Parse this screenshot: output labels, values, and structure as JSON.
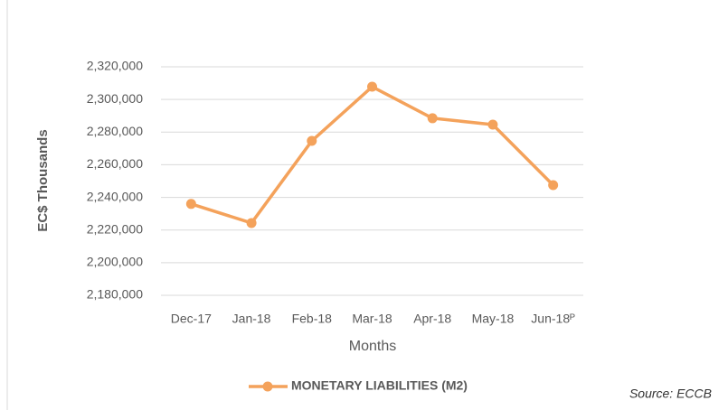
{
  "chart_data": {
    "type": "line",
    "y_label": "EC$ Thousands",
    "x_label": "Months",
    "source": "Source:  ECCB",
    "categories": [
      "Dec-17",
      "Jan-18",
      "Feb-18",
      "Mar-18",
      "Apr-18",
      "May-18",
      "Jun-18ᴾ"
    ],
    "series": [
      {
        "name": "MONETARY LIABILITIES (M2)",
        "color": "#f4a25b",
        "values": [
          2236000,
          2224300,
          2274600,
          2307800,
          2288500,
          2284600,
          2247500
        ]
      }
    ],
    "ylim": [
      2180000,
      2320000
    ],
    "yticks": [
      {
        "value": 2180000,
        "label": "2,180,000"
      },
      {
        "value": 2200000,
        "label": "2,200,000"
      },
      {
        "value": 2220000,
        "label": "2,220,000"
      },
      {
        "value": 2240000,
        "label": "2,240,000"
      },
      {
        "value": 2260000,
        "label": "2,260,000"
      },
      {
        "value": 2280000,
        "label": "2,280,000"
      },
      {
        "value": 2300000,
        "label": "2,300,000"
      },
      {
        "value": 2320000,
        "label": "2,320,000"
      }
    ],
    "grid": true,
    "legend": "bottom"
  }
}
